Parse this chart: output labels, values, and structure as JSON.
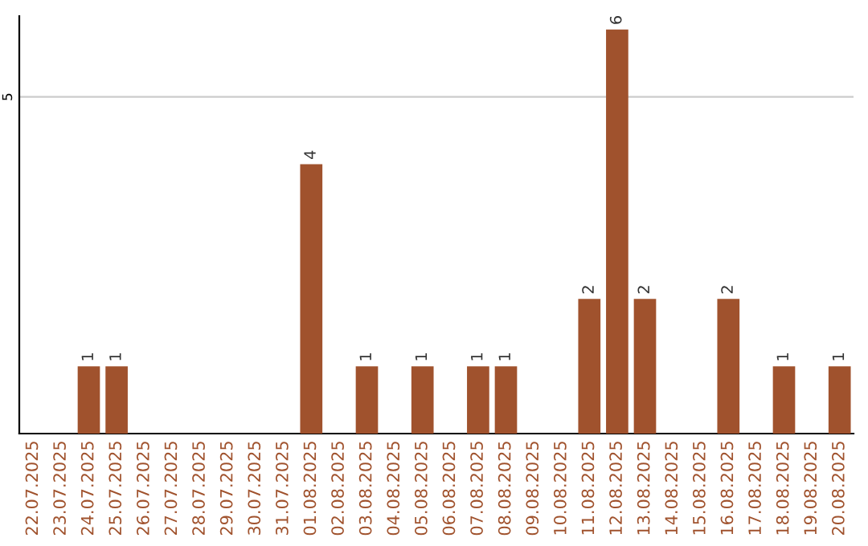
{
  "chart_data": {
    "type": "bar",
    "categories": [
      "22.07.2025",
      "23.07.2025",
      "24.07.2025",
      "25.07.2025",
      "26.07.2025",
      "27.07.2025",
      "28.07.2025",
      "29.07.2025",
      "30.07.2025",
      "31.07.2025",
      "01.08.2025",
      "02.08.2025",
      "03.08.2025",
      "04.08.2025",
      "05.08.2025",
      "06.08.2025",
      "07.08.2025",
      "08.08.2025",
      "09.08.2025",
      "10.08.2025",
      "11.08.2025",
      "12.08.2025",
      "13.08.2025",
      "14.08.2025",
      "15.08.2025",
      "16.08.2025",
      "17.08.2025",
      "18.08.2025",
      "19.08.2025",
      "20.08.2025"
    ],
    "values": [
      0,
      0,
      1,
      1,
      0,
      0,
      0,
      0,
      0,
      0,
      4,
      0,
      1,
      0,
      1,
      0,
      1,
      1,
      0,
      0,
      2,
      6,
      2,
      0,
      0,
      2,
      0,
      1,
      0,
      1
    ],
    "value_labels": [
      null,
      null,
      "1",
      "1",
      null,
      null,
      null,
      null,
      null,
      null,
      "4",
      null,
      "1",
      null,
      "1",
      null,
      "1",
      "1",
      null,
      null,
      "2",
      "6",
      "2",
      null,
      null,
      "2",
      null,
      "1",
      null,
      "1"
    ],
    "color": "#a0522d",
    "ylim": [
      0,
      6.2
    ],
    "yticks": [
      5
    ],
    "grid": "y"
  }
}
